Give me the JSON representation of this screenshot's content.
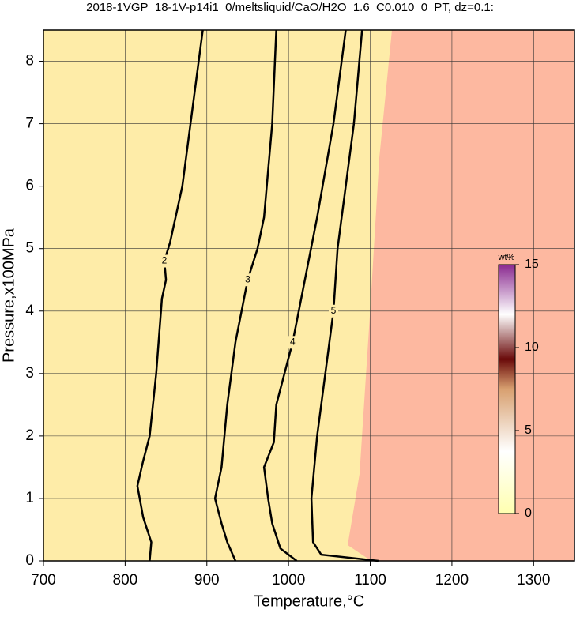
{
  "chart_data": {
    "type": "contour",
    "title": "2018-1VGP_18-1V-p14i1_0/meltsliquid/CaO/H2O_1.6_C0.010_0_PT, dz=0.1:",
    "x_label": "Temperature,°C",
    "y_label": "Pressure,x100MPa",
    "xlim": [
      700,
      1350
    ],
    "ylim": [
      0,
      8.5
    ],
    "xticks": [
      700,
      800,
      900,
      1000,
      1100,
      1200,
      1300
    ],
    "yticks": [
      0,
      1,
      2,
      3,
      4,
      5,
      6,
      7,
      8
    ],
    "grid": true,
    "contours": [
      {
        "level": 2,
        "x": [
          830,
          832,
          822,
          815,
          822,
          830,
          838,
          845,
          850,
          848,
          855,
          870,
          885,
          895
        ],
        "y": [
          0,
          0.3,
          0.7,
          1.2,
          1.6,
          2.0,
          3.0,
          4.2,
          4.5,
          4.8,
          5.1,
          6.0,
          7.5,
          8.5
        ]
      },
      {
        "level": 3,
        "x": [
          935,
          925,
          918,
          910,
          918,
          925,
          935,
          950,
          962,
          970,
          980,
          985
        ],
        "y": [
          0,
          0.3,
          0.6,
          1.0,
          1.5,
          2.5,
          3.5,
          4.5,
          5.0,
          5.5,
          7.0,
          8.5
        ]
      },
      {
        "level": 4,
        "x": [
          1010,
          990,
          980,
          975,
          970,
          982,
          985,
          995,
          1005,
          1020,
          1035,
          1055,
          1070
        ],
        "y": [
          0,
          0.2,
          0.6,
          1.0,
          1.5,
          1.9,
          2.5,
          3.0,
          3.5,
          4.5,
          5.5,
          7.0,
          8.5
        ]
      },
      {
        "level": 5,
        "x": [
          1110,
          1040,
          1030,
          1028,
          1035,
          1045,
          1055,
          1060,
          1080,
          1090
        ],
        "y": [
          0,
          0.1,
          0.3,
          1.0,
          2.0,
          3.0,
          4.0,
          5.0,
          7.0,
          8.5
        ]
      }
    ],
    "colorbar": {
      "label": "wt%",
      "lim": [
        0,
        15
      ],
      "ticks": [
        0,
        5,
        10,
        15
      ]
    }
  }
}
